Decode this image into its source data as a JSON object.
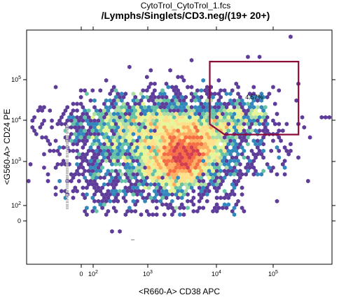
{
  "chart_data": {
    "type": "heatmap",
    "title": "CytoTrol_CytoTrol_1.fcs",
    "subtitle": "/Lymphs/Singlets/CD3.neg/(19+ 20+)",
    "xlabel": "<R660-A> CD38 APC",
    "ylabel": "<G560-A> CD24 PE",
    "x_ticks": [
      {
        "label": "0",
        "value": 0
      },
      {
        "label": "10",
        "sup": "2",
        "value": 100
      },
      {
        "label": "10",
        "sup": "3",
        "value": 1000
      },
      {
        "label": "10",
        "sup": "4",
        "value": 10000
      },
      {
        "label": "10",
        "sup": "5",
        "value": 100000
      }
    ],
    "y_ticks": [
      {
        "label": "0",
        "value": 0
      },
      {
        "label": "10",
        "sup": "2",
        "value": 100
      },
      {
        "label": "10",
        "sup": "3",
        "value": 1000
      },
      {
        "label": "10",
        "sup": "4",
        "value": 10000
      },
      {
        "label": "10",
        "sup": "5",
        "value": 100000
      }
    ],
    "gate": {
      "label": "4.57%",
      "color": "#8b0a3a",
      "vertices": [
        [
          8000,
          280000
        ],
        [
          280000,
          280000
        ],
        [
          280000,
          4500
        ],
        [
          14000,
          4500
        ],
        [
          8000,
          8000
        ]
      ]
    },
    "hexbin": {
      "colormap": [
        "#5e3c99",
        "#3288bd",
        "#66c2a5",
        "#abdda4",
        "#e6f598",
        "#fee08b",
        "#fdae61",
        "#f46d43",
        "#d53e4f"
      ],
      "core_center": [
        3200,
        1500
      ],
      "density_range": "low-to-high"
    },
    "grid": false,
    "axis_color": "#000000"
  }
}
